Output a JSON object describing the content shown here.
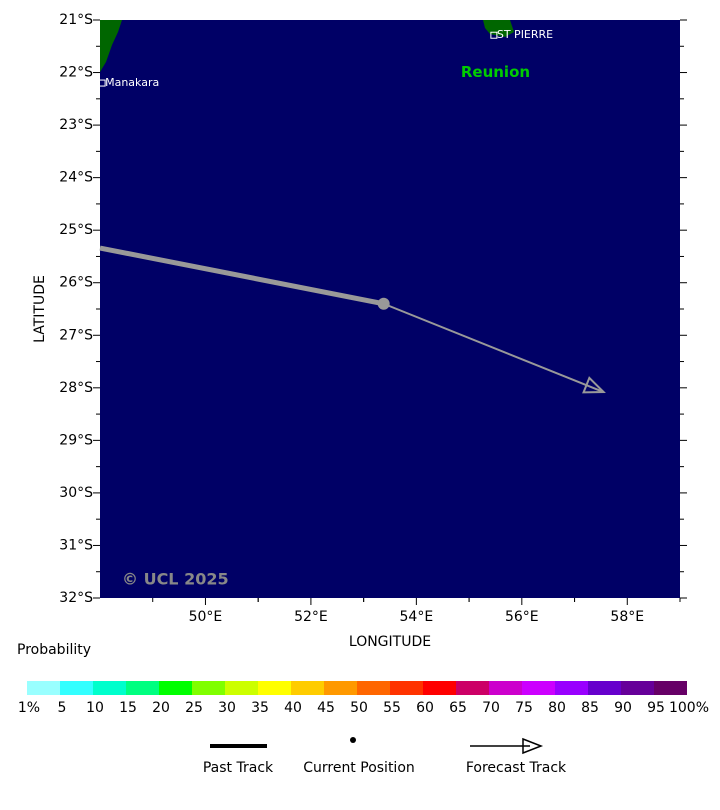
{
  "map": {
    "xlim": [
      48,
      59
    ],
    "ylim": [
      -21,
      -32
    ],
    "xticks": [
      {
        "value": 50,
        "label": "50°E"
      },
      {
        "value": 52,
        "label": "52°E"
      },
      {
        "value": 54,
        "label": "54°E"
      },
      {
        "value": 56,
        "label": "56°E"
      },
      {
        "value": 58,
        "label": "58°E"
      }
    ],
    "yticks": [
      {
        "value": -21,
        "label": "21°S"
      },
      {
        "value": -22,
        "label": "22°S"
      },
      {
        "value": -23,
        "label": "23°S"
      },
      {
        "value": -24,
        "label": "24°S"
      },
      {
        "value": -25,
        "label": "25°S"
      },
      {
        "value": -26,
        "label": "26°S"
      },
      {
        "value": -27,
        "label": "27°S"
      },
      {
        "value": -28,
        "label": "28°S"
      },
      {
        "value": -29,
        "label": "29°S"
      },
      {
        "value": -30,
        "label": "30°S"
      },
      {
        "value": -31,
        "label": "31°S"
      },
      {
        "value": -32,
        "label": "32°S"
      }
    ],
    "xlabel": "LONGITUDE",
    "ylabel": "LATITUDE",
    "places": [
      {
        "name": "Manakara",
        "lon": 48.04,
        "lat": -22.2
      },
      {
        "name": "ST PIERRE",
        "lon": 55.47,
        "lat": -21.29
      }
    ],
    "region_labels": [
      {
        "name": "Reunion",
        "lon": 55.5,
        "lat": -22.0
      }
    ],
    "copyright": "© UCL 2025",
    "past_track": {
      "lon": [
        48,
        53.38
      ],
      "lat": [
        -25.34,
        -26.4
      ]
    },
    "forecast_track": {
      "lon": [
        53.38,
        57.55
      ],
      "lat": [
        -26.4,
        -28.08
      ]
    }
  },
  "probability_legend": {
    "title": "Probability",
    "ticks": [
      {
        "value": 1,
        "label": "1%"
      },
      5,
      10,
      15,
      20,
      25,
      30,
      35,
      40,
      45,
      50,
      55,
      60,
      65,
      70,
      75,
      80,
      85,
      90,
      95,
      {
        "value": 100,
        "label": "100%"
      }
    ],
    "colors": [
      "#99ffff",
      "#33ffff",
      "#00ffcc",
      "#00ff80",
      "#00ff00",
      "#80ff00",
      "#ccff00",
      "#ffff00",
      "#ffcc00",
      "#ff9900",
      "#ff6600",
      "#ff3300",
      "#ff0000",
      "#cc0066",
      "#cc00cc",
      "#cc00ff",
      "#9900ff",
      "#6600cc",
      "#660099",
      "#660066"
    ]
  },
  "track_legend": {
    "items": [
      "Past Track",
      "Current Position",
      "Forecast Track"
    ]
  }
}
